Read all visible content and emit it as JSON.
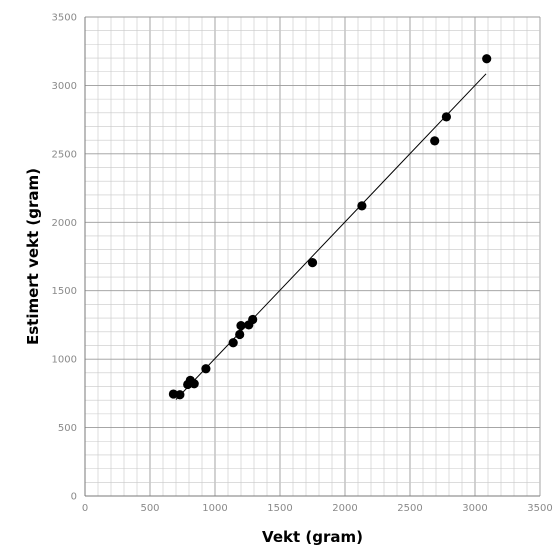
{
  "chart_data": {
    "type": "scatter",
    "xlabel": "Vekt (gram)",
    "ylabel": "Estimert vekt (gram)",
    "xlim": [
      0,
      3500
    ],
    "ylim": [
      0,
      3500
    ],
    "x_ticks": [
      "0",
      "500",
      "1000",
      "1500",
      "2000",
      "2500",
      "3000",
      "3500"
    ],
    "y_ticks": [
      "0",
      "500",
      "1000",
      "1500",
      "2000",
      "2500",
      "3000",
      "3500"
    ],
    "grid": true,
    "minor_grid_step": 100,
    "major_grid_step": 500,
    "points": [
      {
        "x": 680,
        "y": 745
      },
      {
        "x": 730,
        "y": 740
      },
      {
        "x": 790,
        "y": 815
      },
      {
        "x": 810,
        "y": 845
      },
      {
        "x": 840,
        "y": 820
      },
      {
        "x": 930,
        "y": 930
      },
      {
        "x": 1140,
        "y": 1120
      },
      {
        "x": 1190,
        "y": 1180
      },
      {
        "x": 1200,
        "y": 1245
      },
      {
        "x": 1260,
        "y": 1250
      },
      {
        "x": 1290,
        "y": 1290
      },
      {
        "x": 1750,
        "y": 1705
      },
      {
        "x": 2130,
        "y": 2120
      },
      {
        "x": 2690,
        "y": 2595
      },
      {
        "x": 2780,
        "y": 2770
      },
      {
        "x": 3090,
        "y": 3195
      }
    ],
    "fit_line": {
      "x_start": 700,
      "y_start": 705,
      "x_end": 3085,
      "y_end": 3085
    },
    "colors": {
      "points": "#000000",
      "line": "#000000",
      "grid": "#c8c8c8",
      "major_grid": "#9a9a9a",
      "tick_text": "#8a8a8a"
    }
  }
}
